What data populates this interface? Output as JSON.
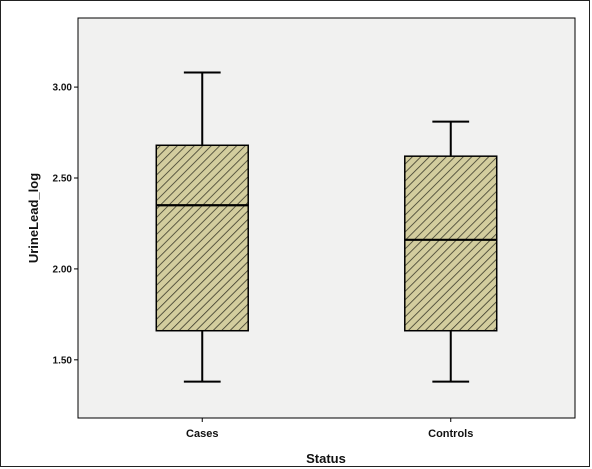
{
  "chart_data": {
    "type": "boxplot",
    "xlabel": "Status",
    "ylabel": "UrineLead_log",
    "ylim": [
      1.18,
      3.38
    ],
    "yticks": [
      1.5,
      2.0,
      2.5,
      3.0
    ],
    "ytick_labels": [
      "1.50",
      "2.00",
      "2.50",
      "3.00"
    ],
    "categories": [
      "Cases",
      "Controls"
    ],
    "boxes": [
      {
        "category": "Cases",
        "min": 1.38,
        "q1": 1.66,
        "median": 2.35,
        "q3": 2.68,
        "max": 3.08
      },
      {
        "category": "Controls",
        "min": 1.38,
        "q1": 1.66,
        "median": 2.16,
        "q3": 2.62,
        "max": 2.81
      }
    ],
    "grid": false,
    "colors": {
      "plot_background": "#f1f1f0",
      "box_fill": "#d3cd9e",
      "hatch": "#3a3a2a",
      "line": "#000000"
    }
  }
}
